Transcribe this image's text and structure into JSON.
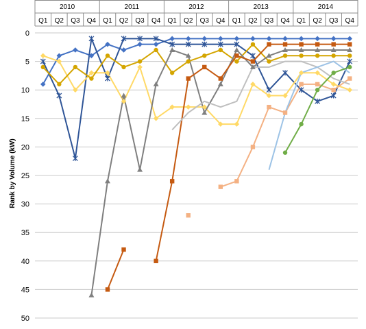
{
  "chart_data": {
    "type": "line",
    "ylabel": "Rank by Volume (kW)",
    "y_reversed": true,
    "ylim": [
      0,
      50
    ],
    "y_ticks": [
      0,
      5,
      10,
      15,
      20,
      25,
      30,
      35,
      40,
      45,
      50
    ],
    "grid": true,
    "years": [
      "2010",
      "2011",
      "2012",
      "2013",
      "2014"
    ],
    "x": [
      "2010 Q1",
      "2010 Q2",
      "2010 Q3",
      "2010 Q4",
      "2011 Q1",
      "2011 Q2",
      "2011 Q3",
      "2011 Q4",
      "2012 Q1",
      "2012 Q2",
      "2012 Q3",
      "2012 Q4",
      "2013 Q1",
      "2013 Q2",
      "2013 Q3",
      "2013 Q4",
      "2014 Q1",
      "2014 Q2",
      "2014 Q3",
      "2014 Q4"
    ],
    "quarter_labels": [
      "Q1",
      "Q2",
      "Q3",
      "Q4",
      "Q1",
      "Q2",
      "Q3",
      "Q4",
      "Q1",
      "Q2",
      "Q3",
      "Q4",
      "Q1",
      "Q2",
      "Q3",
      "Q4",
      "Q1",
      "Q2",
      "Q3",
      "Q4"
    ],
    "series": [
      {
        "color": "#4472C4",
        "marker": "diamond",
        "values": [
          9,
          4,
          3,
          4,
          2,
          3,
          2,
          2,
          1,
          1,
          1,
          1,
          1,
          1,
          1,
          1,
          1,
          1,
          1,
          1
        ]
      },
      {
        "color": "#2F5597",
        "marker": "star",
        "values": [
          5,
          11,
          22,
          1,
          8,
          1,
          1,
          1,
          2,
          2,
          2,
          2,
          2,
          4,
          10,
          7,
          10,
          12,
          11,
          5
        ]
      },
      {
        "color": "#FFD966",
        "marker": "diamond",
        "values": [
          4,
          5,
          10,
          7,
          7,
          12,
          6,
          15,
          13,
          13,
          13,
          16,
          16,
          9,
          11,
          11,
          7,
          7,
          9,
          10
        ]
      },
      {
        "color": "#D4A500",
        "marker": "circle",
        "values": [
          6,
          9,
          6,
          8,
          4,
          6,
          5,
          3,
          7,
          5,
          4,
          3,
          5,
          2,
          5,
          4,
          4,
          4,
          4,
          4
        ]
      },
      {
        "color": "#7F7F7F",
        "marker": "triangle",
        "values": [
          null,
          null,
          null,
          46,
          26,
          11,
          24,
          9,
          3,
          4,
          14,
          9,
          3,
          6,
          4,
          3,
          3,
          3,
          3,
          3
        ]
      },
      {
        "color": "#C55A11",
        "marker": "square",
        "values": [
          null,
          null,
          null,
          null,
          45,
          38,
          null,
          40,
          26,
          8,
          6,
          8,
          4,
          5,
          2,
          2,
          2,
          2,
          2,
          2
        ]
      },
      {
        "color": "#F4B183",
        "marker": "square",
        "values": [
          null,
          null,
          null,
          null,
          null,
          null,
          null,
          null,
          null,
          32,
          null,
          27,
          26,
          20,
          13,
          14,
          9,
          9,
          10,
          8
        ]
      },
      {
        "color": "#BFBFBF",
        "marker": "none",
        "values": [
          null,
          null,
          null,
          null,
          null,
          null,
          null,
          null,
          17,
          14,
          12,
          13,
          12,
          6,
          6,
          5,
          5,
          6,
          8,
          9
        ]
      },
      {
        "color": "#9DC3E6",
        "marker": "none",
        "values": [
          null,
          null,
          null,
          null,
          null,
          null,
          null,
          null,
          null,
          null,
          null,
          null,
          null,
          null,
          24,
          14,
          7,
          6,
          5,
          7
        ]
      },
      {
        "color": "#70AD47",
        "marker": "circle",
        "values": [
          null,
          null,
          null,
          null,
          null,
          null,
          null,
          null,
          null,
          null,
          null,
          null,
          null,
          null,
          null,
          21,
          16,
          10,
          7,
          6
        ]
      }
    ]
  }
}
